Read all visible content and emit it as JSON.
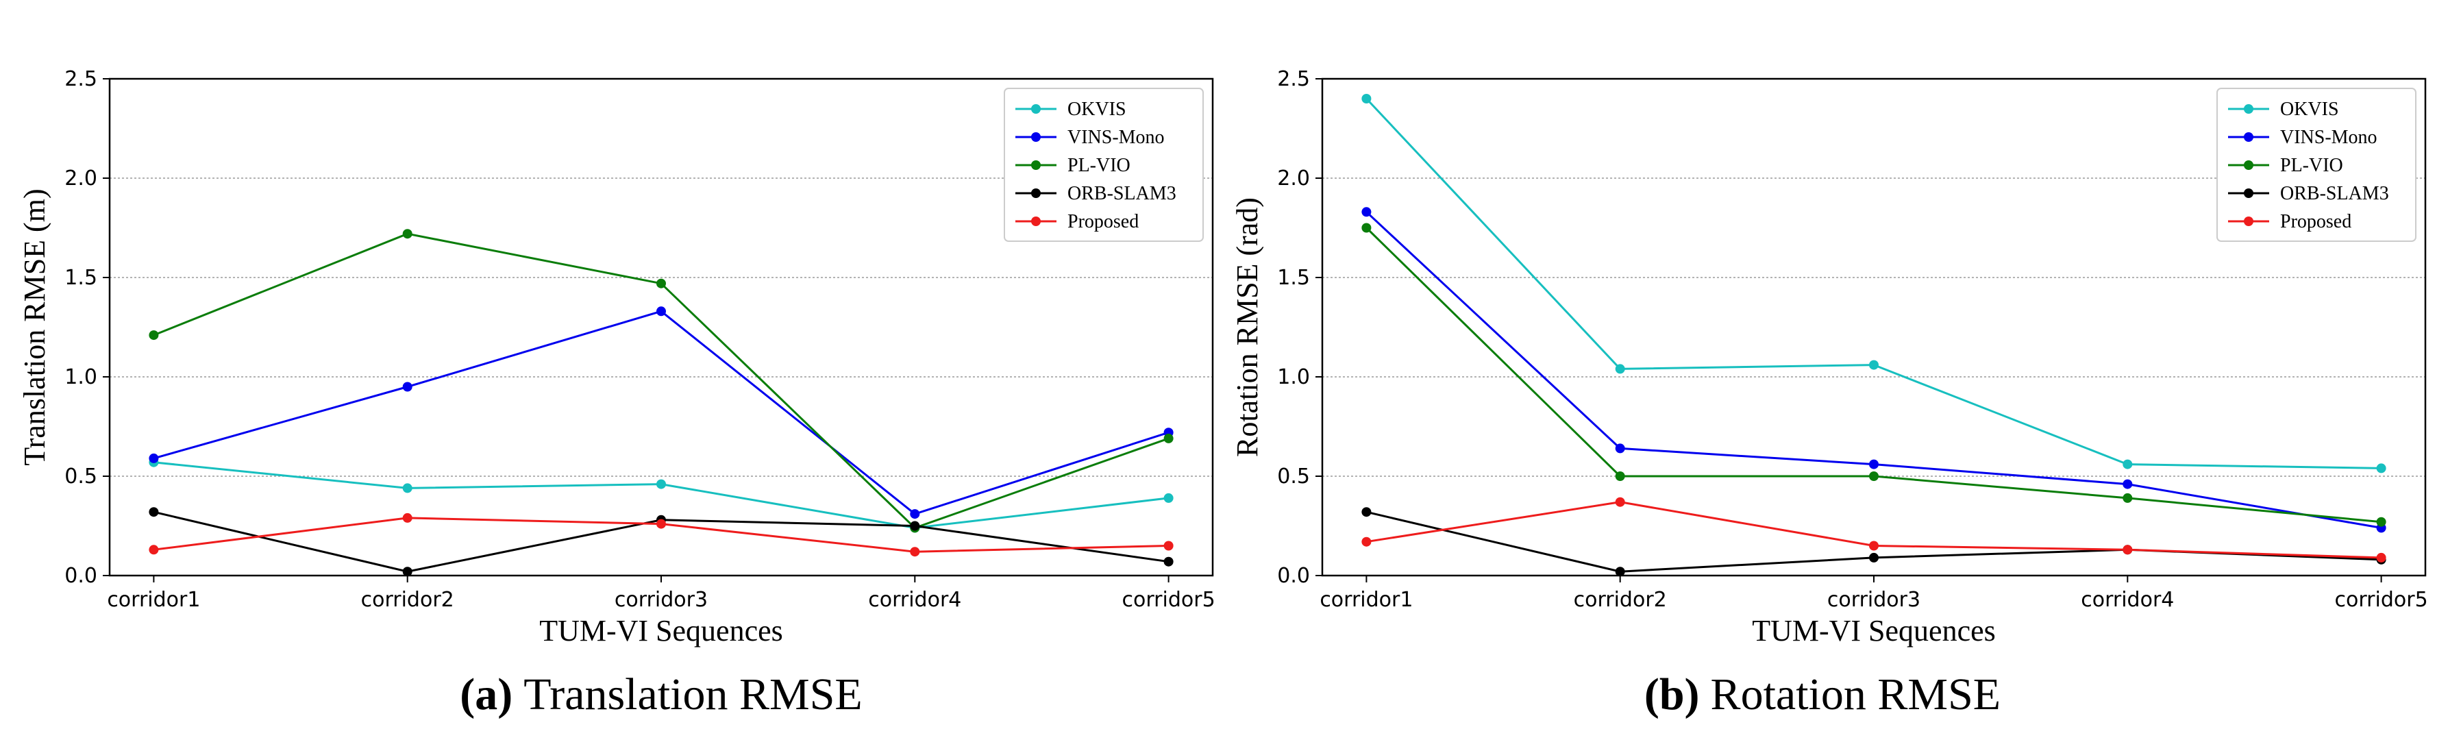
{
  "colors": {
    "OKVIS": "#17bfbf",
    "VINS-Mono": "#0000ee",
    "PL-VIO": "#0a7d0a",
    "ORB-SLAM3": "#000000",
    "Proposed": "#ee1c1c"
  },
  "chart_data": [
    {
      "type": "line",
      "title": "",
      "xlabel": "TUM-VI Sequences",
      "ylabel": "Translation RMSE (m)",
      "ylim": [
        0,
        2.5
      ],
      "yticks": [
        "0.0",
        "0.5",
        "1.0",
        "1.5",
        "2.0",
        "2.5"
      ],
      "categories": [
        "corridor1",
        "corridor2",
        "corridor3",
        "corridor4",
        "corridor5"
      ],
      "grid": "horizontal",
      "legend_position": "top-right",
      "series": [
        {
          "name": "OKVIS",
          "values": [
            0.57,
            0.44,
            0.46,
            0.24,
            0.39
          ]
        },
        {
          "name": "VINS-Mono",
          "values": [
            0.59,
            0.95,
            1.33,
            0.31,
            0.72
          ]
        },
        {
          "name": "PL-VIO",
          "values": [
            1.21,
            1.72,
            1.47,
            0.24,
            0.69
          ]
        },
        {
          "name": "ORB-SLAM3",
          "values": [
            0.32,
            0.02,
            0.28,
            0.25,
            0.07
          ]
        },
        {
          "name": "Proposed",
          "values": [
            0.13,
            0.29,
            0.26,
            0.12,
            0.15
          ]
        }
      ],
      "caption_letter": "(a)",
      "caption_text": "Translation RMSE"
    },
    {
      "type": "line",
      "title": "",
      "xlabel": "TUM-VI Sequences",
      "ylabel": "Rotation RMSE (rad)",
      "ylim": [
        0,
        2.5
      ],
      "yticks": [
        "0.0",
        "0.5",
        "1.0",
        "1.5",
        "2.0",
        "2.5"
      ],
      "categories": [
        "corridor1",
        "corridor2",
        "corridor3",
        "corridor4",
        "corridor5"
      ],
      "grid": "horizontal",
      "legend_position": "top-right",
      "series": [
        {
          "name": "OKVIS",
          "values": [
            2.4,
            1.04,
            1.06,
            0.56,
            0.54
          ]
        },
        {
          "name": "VINS-Mono",
          "values": [
            1.83,
            0.64,
            0.56,
            0.46,
            0.24
          ]
        },
        {
          "name": "PL-VIO",
          "values": [
            1.75,
            0.5,
            0.5,
            0.39,
            0.27
          ]
        },
        {
          "name": "ORB-SLAM3",
          "values": [
            0.32,
            0.02,
            0.09,
            0.13,
            0.08
          ]
        },
        {
          "name": "Proposed",
          "values": [
            0.17,
            0.37,
            0.15,
            0.13,
            0.09
          ]
        }
      ],
      "caption_letter": "(b)",
      "caption_text": "Rotation RMSE"
    }
  ]
}
